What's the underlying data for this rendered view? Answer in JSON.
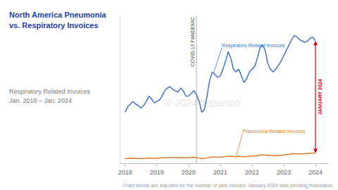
{
  "chart_data": {
    "type": "line",
    "title": "North America Pneumonia\nvs. Respiratory Invoices",
    "subtitle": "Respiratory Related Invoices\nJan. 2018 – Jan. 2024",
    "footnote": "Chart trends are adjusted for the number of pets insured. January 2024 data pending finalization.",
    "watermark": "© 2024 trupanion",
    "x": [
      2018.0,
      2018.083,
      2018.167,
      2018.25,
      2018.333,
      2018.417,
      2018.5,
      2018.583,
      2018.667,
      2018.75,
      2018.833,
      2018.917,
      2019.0,
      2019.083,
      2019.167,
      2019.25,
      2019.333,
      2019.417,
      2019.5,
      2019.583,
      2019.667,
      2019.75,
      2019.833,
      2019.917,
      2020.0,
      2020.083,
      2020.167,
      2020.25,
      2020.333,
      2020.417,
      2020.5,
      2020.583,
      2020.667,
      2020.75,
      2020.833,
      2020.917,
      2021.0,
      2021.083,
      2021.167,
      2021.25,
      2021.333,
      2021.417,
      2021.5,
      2021.583,
      2021.667,
      2021.75,
      2021.833,
      2021.917,
      2022.0,
      2022.083,
      2022.167,
      2022.25,
      2022.333,
      2022.417,
      2022.5,
      2022.583,
      2022.667,
      2022.75,
      2022.833,
      2022.917,
      2023.0,
      2023.083,
      2023.167,
      2023.25,
      2023.333,
      2023.417,
      2023.5,
      2023.583,
      2023.667,
      2023.75,
      2023.833,
      2023.917,
      2024.0
    ],
    "series": [
      {
        "name": "Respiratory Related Invoices",
        "color": "#4472c4",
        "label_point": [
          2020.8,
          68
        ],
        "label_at": [
          2021.05,
          86
        ],
        "values": [
          38,
          42,
          44,
          46,
          44,
          43,
          41,
          43,
          46,
          50,
          48,
          45,
          46,
          47,
          50,
          54,
          56,
          57,
          55,
          54,
          53,
          56,
          54,
          50,
          50,
          52,
          54,
          51,
          46,
          38,
          40,
          50,
          62,
          68,
          66,
          64,
          65,
          70,
          76,
          83,
          78,
          70,
          68,
          70,
          65,
          60,
          63,
          68,
          70,
          72,
          78,
          86,
          88,
          84,
          74,
          70,
          68,
          70,
          73,
          76,
          80,
          84,
          88,
          92,
          95,
          94,
          92,
          91,
          90,
          91,
          93,
          94,
          91
        ]
      },
      {
        "name": "Pneumonia Related Invoices",
        "color": "#e07b28",
        "label_point": [
          2021.5,
          5.3
        ],
        "label_at": [
          2021.7,
          22
        ],
        "values": [
          3.5,
          3.6,
          3.7,
          3.8,
          3.7,
          3.6,
          3.5,
          3.6,
          3.7,
          3.9,
          3.8,
          3.7,
          3.8,
          3.9,
          4.0,
          4.1,
          4.2,
          4.3,
          4.3,
          4.2,
          4.1,
          4.3,
          4.2,
          4.1,
          4.2,
          4.3,
          4.4,
          4.2,
          3.8,
          3.5,
          3.6,
          4.0,
          4.4,
          4.7,
          4.6,
          4.5,
          4.6,
          4.8,
          5.0,
          5.3,
          5.2,
          5.0,
          4.9,
          5.2,
          5.0,
          4.9,
          5.0,
          5.2,
          5.3,
          5.5,
          5.8,
          6.1,
          6.2,
          6.1,
          5.8,
          5.7,
          5.6,
          5.7,
          5.8,
          6.0,
          6.1,
          6.4,
          6.7,
          7.0,
          7.1,
          7.1,
          7.0,
          7.0,
          7.1,
          7.3,
          7.5,
          7.6,
          7.6
        ]
      }
    ],
    "annotations": [
      {
        "text": "COVID-19 PANDEMIC",
        "x": 2020.25,
        "color": "#999999"
      },
      {
        "text": "JANUARY 2024",
        "x": 2024.0,
        "y": [
          7.6,
          91
        ],
        "color": "#cc0000"
      }
    ],
    "xlim": [
      2017.83,
      2024.4
    ],
    "xticks": [
      2018,
      2019,
      2020,
      2021,
      2022,
      2023,
      2024
    ],
    "ylim": [
      0,
      110
    ],
    "tick_labels": "x",
    "grid": false
  }
}
